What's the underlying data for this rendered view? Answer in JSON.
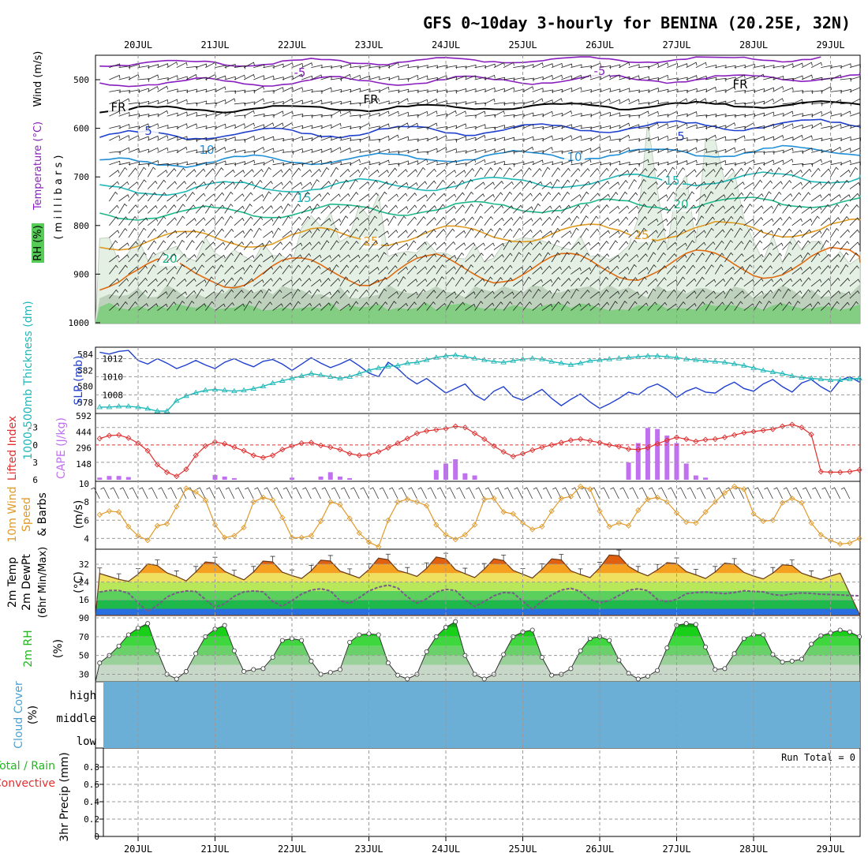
{
  "title": "GFS 0~10day 3-hourly for BENINA (20.25E, 32N)",
  "dates": [
    "20JUL",
    "21JUL",
    "22JUL",
    "23JUL",
    "24JUL",
    "25JUL",
    "26JUL",
    "27JUL",
    "28JUL",
    "29JUL"
  ],
  "colors": {
    "purple": "#8a1fbf",
    "black": "#000000",
    "blue": "#1f3fcf",
    "lightblue": "#1f8fd8",
    "teal": "#1fb8b8",
    "green": "#1fb88a",
    "orange": "#e09a1f",
    "darkorange": "#e06a10",
    "rh_green": "#55cc55",
    "slp": "#1f3fcf",
    "thick": "#20b8b8",
    "li": "#e03030",
    "cape": "#c070f0",
    "wind": "#e09a2a",
    "cloud": "#6baed6",
    "grid": "#999999"
  },
  "panels": {
    "upper": {
      "ylabel_wind": "Wind (m/s)",
      "ylabel_temp": "Temperature (°C)",
      "ylabel_rh": "RH (%)",
      "ylabel_pres": "( m i l l i b a r s )",
      "ticks": [
        "500",
        "600",
        "700",
        "800",
        "900",
        "1000"
      ],
      "contour_labels": [
        {
          "text": "-5",
          "color": "purple"
        },
        {
          "text": "-5",
          "color": "purple"
        },
        {
          "text": "FR",
          "color": "black"
        },
        {
          "text": "FR",
          "color": "black"
        },
        {
          "text": "FR",
          "color": "black"
        },
        {
          "text": "5",
          "color": "blue"
        },
        {
          "text": "5",
          "color": "blue"
        },
        {
          "text": "10",
          "color": "lightblue"
        },
        {
          "text": "10",
          "color": "lightblue"
        },
        {
          "text": "15",
          "color": "teal"
        },
        {
          "text": "15",
          "color": "teal"
        },
        {
          "text": "20",
          "color": "green"
        },
        {
          "text": "20",
          "color": "green"
        },
        {
          "text": "25",
          "color": "orange"
        },
        {
          "text": "25",
          "color": "orange"
        }
      ]
    },
    "slp": {
      "ylabel_thick": "1000-500mb Thickness (dm)",
      "ylabel_slp": "SLP (mb)",
      "ticks_left": [
        "584",
        "582",
        "580",
        "578"
      ],
      "ticks_right": [
        "1012",
        "1010",
        "1008"
      ]
    },
    "li": {
      "ylabel_li": "Lifted Index",
      "ylabel_cape": "CAPE (J/kg)",
      "ticks_left": [
        "-3",
        "0",
        "3",
        "6"
      ],
      "ticks_right": [
        "592",
        "444",
        "296",
        "148"
      ]
    },
    "wind10": {
      "ylabel1": "10m Wind",
      "ylabel2": "Speed",
      "ylabel3": "& Barbs",
      "ylabel4": "(m/s)",
      "ticks": [
        "10",
        "8",
        "6",
        "4"
      ]
    },
    "temp2m": {
      "ylabel1": "2m Temp",
      "ylabel2": "2m DewPt",
      "ylabel3": "(6hr Min/Max)",
      "ylabel4": "(°C)",
      "ticks": [
        "32",
        "24",
        "16"
      ]
    },
    "rh2m": {
      "ylabel1": "2m RH",
      "ylabel2": "(%)",
      "ticks": [
        "90",
        "70",
        "50",
        "30"
      ]
    },
    "cloud": {
      "ylabel1": "Cloud Cover",
      "ylabel2": "(%)",
      "levels": [
        "high",
        "middle",
        "low"
      ]
    },
    "precip": {
      "ylabel_a": "Total / Rain",
      "ylabel_b": "Convective",
      "ylabel_c": "3hr Precip (mm)",
      "ticks": [
        "0.8",
        "0.6",
        "0.4",
        "0.2",
        "0"
      ],
      "run_total": "Run Total = 0"
    }
  },
  "chart_data": [
    {
      "type": "line",
      "name": "SLP",
      "ylabel": "SLP (mb)",
      "ylim": [
        1006.2,
        1013.0
      ],
      "x_step_hours": 3,
      "values": [
        1012.7,
        1012.5,
        1012.8,
        1012.9,
        1011.8,
        1011.4,
        1012.0,
        1011.5,
        1010.9,
        1011.3,
        1011.8,
        1011.3,
        1010.9,
        1011.6,
        1012.0,
        1011.5,
        1011.1,
        1011.7,
        1011.9,
        1011.4,
        1010.7,
        1011.4,
        1012.1,
        1011.5,
        1011.0,
        1011.4,
        1011.9,
        1011.2,
        1010.4,
        1010.0,
        1011.6,
        1010.9,
        1009.9,
        1009.2,
        1009.8,
        1009.0,
        1008.2,
        1008.7,
        1009.2,
        1008.0,
        1007.4,
        1008.4,
        1008.9,
        1007.8,
        1007.4,
        1008.0,
        1008.6,
        1007.6,
        1006.8,
        1007.5,
        1008.1,
        1007.2,
        1006.5,
        1007.0,
        1007.6,
        1008.3,
        1008.0,
        1008.8,
        1009.2,
        1008.6,
        1007.7,
        1008.4,
        1008.8,
        1008.3,
        1008.2,
        1008.9,
        1009.4,
        1008.7,
        1008.4,
        1009.2,
        1009.7,
        1008.9,
        1008.3,
        1009.3,
        1009.7,
        1008.9,
        1008.3,
        1009.6,
        1010.0,
        1009.4
      ]
    },
    {
      "type": "line",
      "name": "1000-500mb Thickness",
      "ylabel": "1000-500mb Thickness (dm)",
      "ylim": [
        576.9,
        584.6
      ],
      "x_step_hours": 3,
      "values": [
        577.4,
        577.4,
        577.5,
        577.5,
        577.4,
        577.2,
        576.9,
        576.9,
        578.2,
        578.8,
        579.2,
        579.5,
        579.6,
        579.5,
        579.4,
        579.5,
        579.7,
        580.0,
        580.4,
        580.7,
        581.0,
        581.3,
        581.6,
        581.4,
        581.2,
        581.0,
        581.2,
        581.6,
        582.0,
        582.3,
        582.5,
        582.6,
        582.9,
        583.0,
        583.3,
        583.6,
        583.8,
        583.9,
        583.7,
        583.5,
        583.3,
        583.1,
        583.0,
        583.2,
        583.4,
        583.5,
        583.4,
        583.1,
        582.9,
        582.7,
        582.9,
        583.2,
        583.3,
        583.4,
        583.5,
        583.6,
        583.7,
        583.8,
        583.8,
        583.7,
        583.6,
        583.4,
        583.3,
        583.2,
        583.1,
        583.0,
        582.8,
        582.6,
        582.3,
        582.0,
        581.8,
        581.6,
        581.3,
        581.1,
        581.0,
        580.9,
        580.8,
        580.8,
        580.9,
        581.0
      ]
    },
    {
      "type": "line",
      "name": "Lifted Index",
      "ylabel": "Lifted Index",
      "ylim": [
        -5.0,
        6.0
      ],
      "x_step_hours": 3,
      "values": [
        -1.1,
        -1.6,
        -1.7,
        -1.2,
        -0.3,
        1.0,
        3.4,
        4.7,
        5.4,
        4.2,
        1.8,
        0.2,
        -0.5,
        -0.2,
        0.4,
        1.0,
        1.8,
        2.2,
        1.8,
        0.8,
        0.2,
        -0.3,
        -0.4,
        0.1,
        0.4,
        0.8,
        1.5,
        1.8,
        1.7,
        1.2,
        0.5,
        -0.3,
        -1.1,
        -2.0,
        -2.4,
        -2.6,
        -2.8,
        -3.2,
        -3.0,
        -2.0,
        -1.0,
        0.2,
        1.2,
        2.0,
        1.5,
        0.9,
        0.4,
        0.0,
        -0.4,
        -0.8,
        -1.0,
        -0.7,
        -0.4,
        0.0,
        0.3,
        0.7,
        0.8,
        0.5,
        -0.2,
        -0.8,
        -1.3,
        -1.0,
        -0.6,
        -0.9,
        -1.0,
        -1.3,
        -1.7,
        -2.1,
        -2.3,
        -2.5,
        -2.7,
        -3.2,
        -3.5,
        -3.0,
        -1.8,
        4.6,
        4.7,
        4.7,
        4.6,
        4.3
      ]
    },
    {
      "type": "bar",
      "name": "CAPE",
      "ylabel": "CAPE (J/kg)",
      "ylim": [
        0,
        592
      ],
      "x_step_hours": 3,
      "values": [
        20,
        35,
        35,
        25,
        0,
        0,
        0,
        0,
        0,
        0,
        0,
        0,
        45,
        30,
        15,
        0,
        0,
        0,
        0,
        0,
        20,
        0,
        0,
        30,
        70,
        30,
        15,
        0,
        0,
        0,
        0,
        0,
        0,
        0,
        0,
        90,
        150,
        190,
        60,
        40,
        0,
        0,
        0,
        0,
        0,
        0,
        0,
        0,
        0,
        0,
        0,
        0,
        0,
        0,
        0,
        160,
        340,
        480,
        470,
        410,
        340,
        150,
        40,
        20,
        0,
        0,
        0,
        0,
        0,
        0,
        0,
        0,
        0,
        0,
        0,
        0,
        0,
        0,
        0,
        0
      ]
    },
    {
      "type": "line",
      "name": "10m Wind Speed",
      "ylabel": "(m/s)",
      "ylim": [
        3.0,
        10.0
      ],
      "x_step_hours": 3,
      "values": [
        6.6,
        7.0,
        6.9,
        5.3,
        4.3,
        3.8,
        5.4,
        5.6,
        7.5,
        9.5,
        9.1,
        8.2,
        5.5,
        4.1,
        4.3,
        5.2,
        8.0,
        8.5,
        8.2,
        6.3,
        4.1,
        4.1,
        4.3,
        5.9,
        8.0,
        7.7,
        6.2,
        4.6,
        3.6,
        3.1,
        6.0,
        8.0,
        8.3,
        8.0,
        7.6,
        5.5,
        4.4,
        3.9,
        4.4,
        5.5,
        8.3,
        8.4,
        6.9,
        6.7,
        5.7,
        5.0,
        5.3,
        7.0,
        8.4,
        8.6,
        9.7,
        9.4,
        7.0,
        5.3,
        5.7,
        5.4,
        7.1,
        8.3,
        8.5,
        8.0,
        6.8,
        5.8,
        5.7,
        6.9,
        8.0,
        9.0,
        9.7,
        9.4,
        6.7,
        5.9,
        6.0,
        7.9,
        8.4,
        7.9,
        5.7,
        4.4,
        3.8,
        3.4,
        3.5,
        4.0
      ]
    },
    {
      "type": "area",
      "name": "2m Temp",
      "ylabel": "(°C)",
      "ylim": [
        9.0,
        38.0
      ],
      "x_step_hours": 3,
      "values": [
        27.8,
        26.5,
        25.2,
        24.3,
        27.5,
        32.1,
        31.4,
        28.1,
        26.5,
        24.5,
        28.5,
        33.0,
        32.6,
        28.8,
        26.8,
        25.0,
        28.5,
        33.4,
        33.0,
        28.4,
        26.9,
        25.6,
        29.0,
        33.8,
        33.4,
        28.9,
        27.4,
        25.8,
        29.6,
        34.7,
        34.0,
        29.2,
        28.0,
        26.5,
        30.1,
        35.2,
        34.4,
        29.5,
        27.7,
        26.0,
        29.8,
        34.4,
        33.6,
        29.2,
        27.5,
        25.8,
        29.7,
        34.4,
        33.9,
        29.0,
        27.4,
        26.0,
        30.4,
        36.1,
        35.8,
        31.0,
        28.5,
        26.8,
        29.4,
        32.7,
        32.3,
        28.7,
        27.2,
        25.6,
        28.5,
        32.5,
        32.0,
        28.3,
        26.7,
        25.4,
        28.0,
        31.7,
        31.4,
        28.0,
        26.5,
        25.2,
        26.7,
        28.0
      ]
    },
    {
      "type": "line",
      "name": "2m DewPt",
      "ylabel": "(°C)",
      "ylim": [
        9.0,
        38.0
      ],
      "x_step_hours": 3,
      "values": [
        19.5,
        20.2,
        20.2,
        19.0,
        14.7,
        10.8,
        13.5,
        17.3,
        19.2,
        20.0,
        19.8,
        16.2,
        12.6,
        14.3,
        17.6,
        19.6,
        20.0,
        19.6,
        15.3,
        13.1,
        15.7,
        18.6,
        20.4,
        21.0,
        20.0,
        15.7,
        14.4,
        17.0,
        20.0,
        21.7,
        22.6,
        21.3,
        17.3,
        14.6,
        16.5,
        19.5,
        20.7,
        20.2,
        16.1,
        13.0,
        15.3,
        17.8,
        19.3,
        19.1,
        15.4,
        11.8,
        15.4,
        18.2,
        20.4,
        21.2,
        19.8,
        16.3,
        14.7,
        15.7,
        18.0,
        20.3,
        21.0,
        20.1,
        16.2,
        15.2,
        16.2,
        18.8,
        19.3,
        19.5,
        19.2,
        18.8,
        19.3,
        20.1,
        19.8,
        19.6,
        18.4,
        18.0,
        18.7,
        19.1,
        18.9,
        18.5,
        18.4,
        18.2,
        18.0,
        17.8
      ]
    },
    {
      "type": "area",
      "name": "2m RH",
      "ylabel": "(%)",
      "ylim": [
        22,
        90
      ],
      "x_step_hours": 3,
      "values": [
        42,
        50,
        60,
        72,
        79,
        84,
        55,
        30,
        25,
        33,
        52,
        70,
        78,
        82,
        55,
        33,
        35,
        36,
        48,
        66,
        68,
        66,
        44,
        30,
        32,
        35,
        64,
        72,
        73,
        72,
        42,
        29,
        25,
        30,
        54,
        70,
        80,
        86,
        50,
        30,
        25,
        30,
        51,
        70,
        75,
        77,
        48,
        29,
        30,
        36,
        55,
        68,
        70,
        66,
        45,
        31,
        25,
        28,
        34,
        58,
        82,
        84,
        83,
        59,
        35,
        36,
        52,
        68,
        72,
        72,
        51,
        43,
        44,
        46,
        62,
        71,
        74,
        77,
        75,
        70
      ]
    },
    {
      "type": "bar",
      "name": "3hr Precip",
      "ylabel": "3hr Precip (mm)",
      "ylim": [
        0,
        1.0
      ],
      "x_step_hours": 3,
      "values": []
    }
  ]
}
